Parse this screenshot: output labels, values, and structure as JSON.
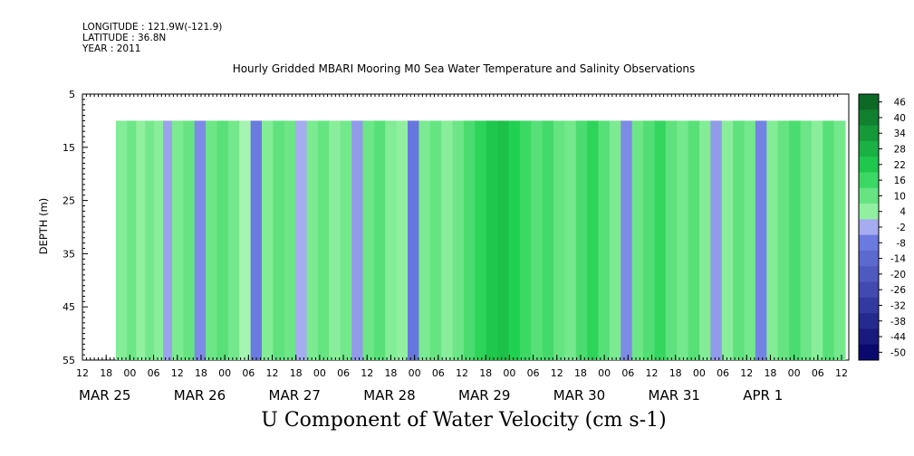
{
  "header": {
    "longitude": "LONGITUDE : 121.9W(-121.9)",
    "latitude": "LATITUDE : 36.8N",
    "year": "YEAR : 2011"
  },
  "chart_data": {
    "type": "heatmap",
    "title": "Hourly Gridded MBARI Mooring M0 Sea Water Temperature and Salinity Observations",
    "xlabel": "U Component of Water Velocity (cm s-1)",
    "ylabel": "DEPTH (m)",
    "y_axis": {
      "range": [
        5,
        55
      ],
      "inverted": true,
      "ticks": [
        5,
        15,
        25,
        35,
        45,
        55
      ],
      "data_range": [
        10,
        55
      ]
    },
    "x_axis": {
      "hour_ticks": [
        "12",
        "18",
        "00",
        "06",
        "12",
        "18",
        "00",
        "06",
        "12",
        "18",
        "00",
        "06",
        "12",
        "18",
        "00",
        "06",
        "12",
        "18",
        "00",
        "06",
        "12",
        "18",
        "00",
        "06",
        "12",
        "18",
        "00",
        "06",
        "12",
        "18",
        "00",
        "06",
        "12"
      ],
      "day_labels": [
        "MAR 25",
        "MAR 26",
        "MAR 27",
        "MAR 28",
        "MAR 29",
        "MAR 30",
        "MAR 31",
        "APR  1"
      ],
      "data_start": "MAR 25 19:00"
    },
    "colorbar": {
      "levels": [
        46,
        40,
        34,
        28,
        22,
        16,
        10,
        4,
        -2,
        -8,
        -14,
        -20,
        -26,
        -32,
        -38,
        -44,
        -50
      ],
      "colors": {
        "neg_max": "#0a0a6e",
        "neg_mid": "#6a7ae0",
        "neg_min": "#b8bcf4",
        "zero": "#e6ffe6",
        "pos_min": "#90f0a0",
        "pos_mid": "#20d050",
        "pos_max": "#0a5a1e"
      }
    },
    "vertical_bands": [
      {
        "day_start": 0.0,
        "day_end": 0.1,
        "value": 6
      },
      {
        "day_start": 0.1,
        "day_end": 0.18,
        "value": 9
      },
      {
        "day_start": 0.18,
        "day_end": 0.26,
        "value": 4
      },
      {
        "day_start": 0.26,
        "day_end": 0.34,
        "value": 8
      },
      {
        "day_start": 0.34,
        "day_end": 0.42,
        "value": 5
      },
      {
        "day_start": 0.42,
        "day_end": 0.5,
        "value": -3
      },
      {
        "day_start": 0.5,
        "day_end": 0.6,
        "value": 7
      },
      {
        "day_start": 0.6,
        "day_end": 0.7,
        "value": 10
      },
      {
        "day_start": 0.7,
        "day_end": 0.8,
        "value": -6
      },
      {
        "day_start": 0.8,
        "day_end": 0.9,
        "value": 9
      },
      {
        "day_start": 0.9,
        "day_end": 1.0,
        "value": 12
      },
      {
        "day_start": 1.0,
        "day_end": 1.1,
        "value": 8
      },
      {
        "day_start": 1.1,
        "day_end": 1.2,
        "value": 3
      },
      {
        "day_start": 1.2,
        "day_end": 1.3,
        "value": -8
      },
      {
        "day_start": 1.3,
        "day_end": 1.4,
        "value": 6
      },
      {
        "day_start": 1.4,
        "day_end": 1.5,
        "value": 11
      },
      {
        "day_start": 1.5,
        "day_end": 1.6,
        "value": 9
      },
      {
        "day_start": 1.6,
        "day_end": 1.7,
        "value": -2
      },
      {
        "day_start": 1.7,
        "day_end": 1.8,
        "value": 7
      },
      {
        "day_start": 1.8,
        "day_end": 1.9,
        "value": 10
      },
      {
        "day_start": 1.9,
        "day_end": 2.0,
        "value": 5
      },
      {
        "day_start": 2.0,
        "day_end": 2.1,
        "value": 8
      },
      {
        "day_start": 2.1,
        "day_end": 2.2,
        "value": -4
      },
      {
        "day_start": 2.2,
        "day_end": 2.3,
        "value": 9
      },
      {
        "day_start": 2.3,
        "day_end": 2.4,
        "value": 12
      },
      {
        "day_start": 2.4,
        "day_end": 2.5,
        "value": 6
      },
      {
        "day_start": 2.5,
        "day_end": 2.6,
        "value": 4
      },
      {
        "day_start": 2.6,
        "day_end": 2.7,
        "value": -9
      },
      {
        "day_start": 2.7,
        "day_end": 2.8,
        "value": 7
      },
      {
        "day_start": 2.8,
        "day_end": 2.9,
        "value": 10
      },
      {
        "day_start": 2.9,
        "day_end": 3.0,
        "value": 5
      },
      {
        "day_start": 3.0,
        "day_end": 3.1,
        "value": 9
      },
      {
        "day_start": 3.1,
        "day_end": 3.2,
        "value": 14
      },
      {
        "day_start": 3.2,
        "day_end": 3.3,
        "value": 18
      },
      {
        "day_start": 3.3,
        "day_end": 3.4,
        "value": 22
      },
      {
        "day_start": 3.4,
        "day_end": 3.5,
        "value": 24
      },
      {
        "day_start": 3.5,
        "day_end": 3.6,
        "value": 20
      },
      {
        "day_start": 3.6,
        "day_end": 3.7,
        "value": 16
      },
      {
        "day_start": 3.7,
        "day_end": 3.8,
        "value": 12
      },
      {
        "day_start": 3.8,
        "day_end": 3.9,
        "value": 15
      },
      {
        "day_start": 3.9,
        "day_end": 4.0,
        "value": 10
      },
      {
        "day_start": 4.0,
        "day_end": 4.1,
        "value": 8
      },
      {
        "day_start": 4.1,
        "day_end": 4.2,
        "value": 14
      },
      {
        "day_start": 4.2,
        "day_end": 4.3,
        "value": 18
      },
      {
        "day_start": 4.3,
        "day_end": 4.4,
        "value": 12
      },
      {
        "day_start": 4.4,
        "day_end": 4.5,
        "value": 7
      },
      {
        "day_start": 4.5,
        "day_end": 4.6,
        "value": -6
      },
      {
        "day_start": 4.6,
        "day_end": 4.7,
        "value": 9
      },
      {
        "day_start": 4.7,
        "day_end": 4.8,
        "value": 13
      },
      {
        "day_start": 4.8,
        "day_end": 4.9,
        "value": 17
      },
      {
        "day_start": 4.9,
        "day_end": 5.0,
        "value": 11
      },
      {
        "day_start": 5.0,
        "day_end": 5.1,
        "value": 8
      },
      {
        "day_start": 5.1,
        "day_end": 5.2,
        "value": 12
      },
      {
        "day_start": 5.2,
        "day_end": 5.3,
        "value": 6
      },
      {
        "day_start": 5.3,
        "day_end": 5.4,
        "value": -4
      },
      {
        "day_start": 5.4,
        "day_end": 5.5,
        "value": 5
      },
      {
        "day_start": 5.5,
        "day_end": 5.6,
        "value": 11
      },
      {
        "day_start": 5.6,
        "day_end": 5.7,
        "value": 8
      },
      {
        "day_start": 5.7,
        "day_end": 5.8,
        "value": -7
      },
      {
        "day_start": 5.8,
        "day_end": 5.9,
        "value": 6
      },
      {
        "day_start": 5.9,
        "day_end": 6.0,
        "value": 10
      },
      {
        "day_start": 6.0,
        "day_end": 6.1,
        "value": 14
      },
      {
        "day_start": 6.1,
        "day_end": 6.2,
        "value": 9
      },
      {
        "day_start": 6.2,
        "day_end": 6.3,
        "value": 5
      },
      {
        "day_start": 6.3,
        "day_end": 6.4,
        "value": 12
      },
      {
        "day_start": 6.4,
        "day_end": 6.5,
        "value": 8
      }
    ]
  }
}
